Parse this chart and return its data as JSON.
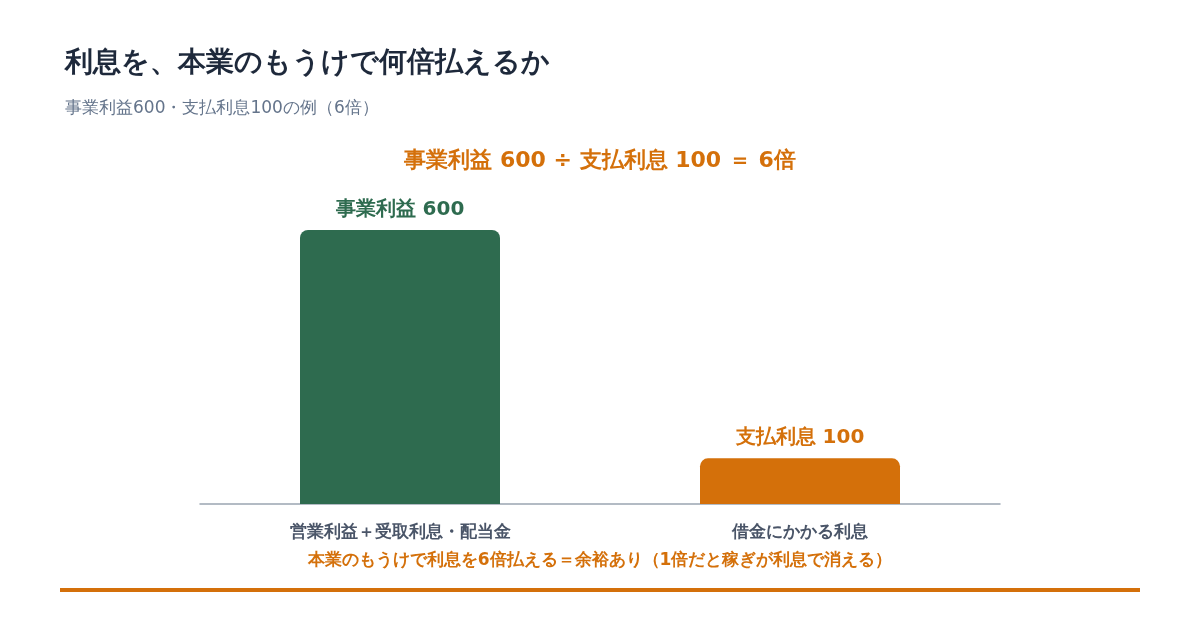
{
  "chart_data": {
    "type": "bar",
    "title": "利息を、本業のもうけで何倍払えるか",
    "subtitle": "事業利益600・支払利息100の例（6倍）",
    "categories": [
      "営業利益＋受取利息・配当金",
      "借金にかかる利息"
    ],
    "values": [
      600,
      100
    ],
    "colors": [
      "#2e6b4f",
      "#d4700a"
    ],
    "value_labels": [
      "事業利益 600",
      "支払利息 100"
    ],
    "annotations": [
      "事業利益 600 ÷ 支払利息 100 ＝ 6倍",
      "本業のもうけで利息を6倍払える＝余裕あり（1倍だと稼ぎが利息で消える）"
    ]
  }
}
